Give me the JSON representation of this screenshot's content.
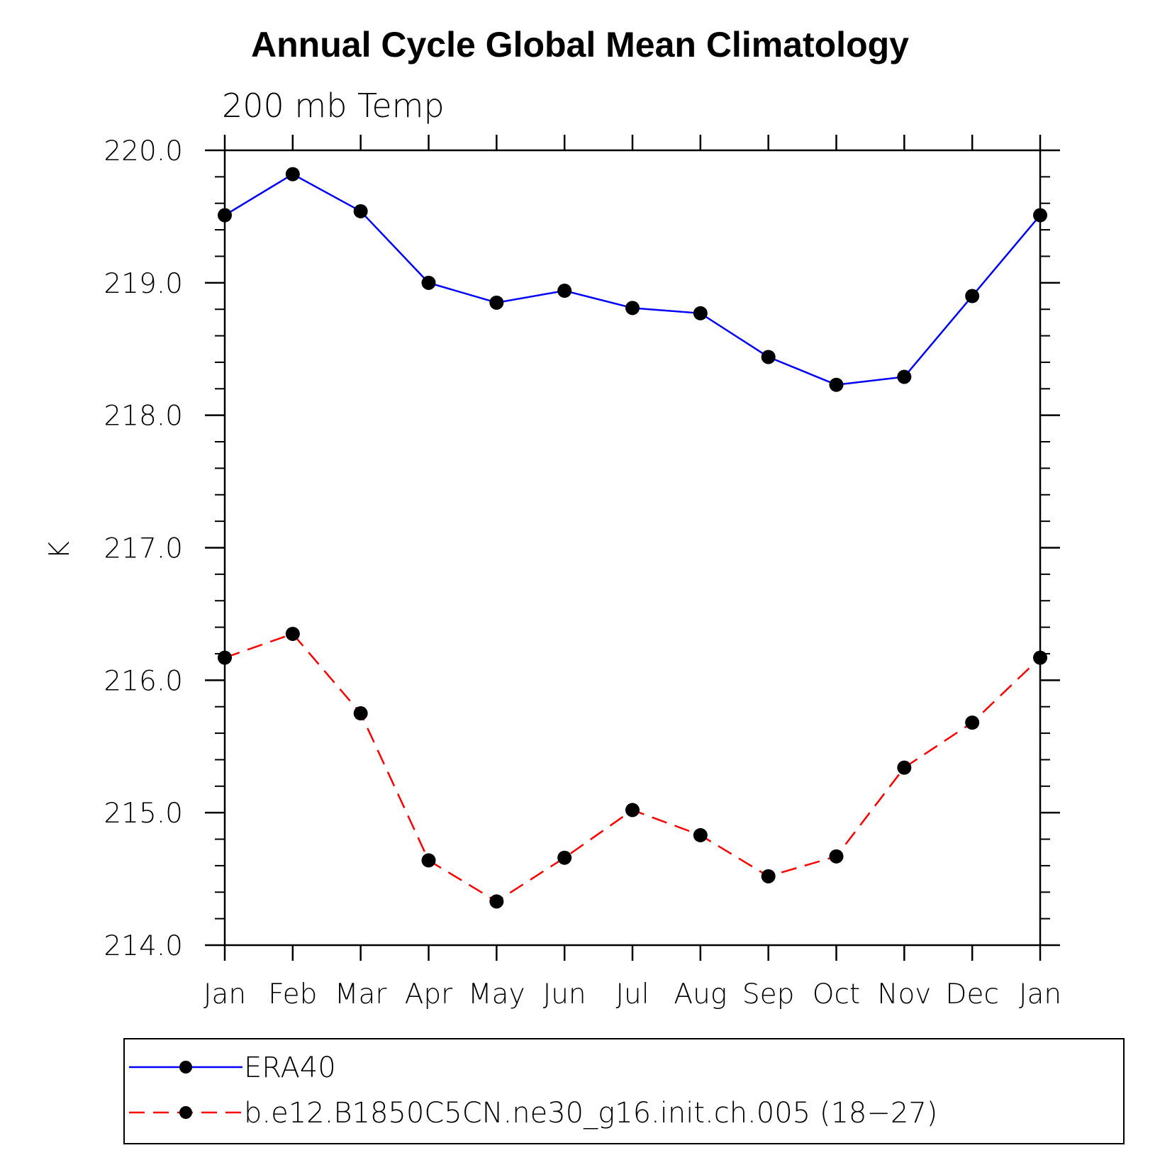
{
  "chart_data": {
    "type": "line",
    "title": "Annual Cycle Global Mean Climatology",
    "subtitle": "200 mb Temp",
    "ylabel": "K",
    "xlabel": "",
    "categories": [
      "Jan",
      "Feb",
      "Mar",
      "Apr",
      "May",
      "Jun",
      "Jul",
      "Aug",
      "Sep",
      "Oct",
      "Nov",
      "Dec",
      "Jan"
    ],
    "ylim": [
      214.0,
      220.0
    ],
    "yticks": [
      "214.0",
      "215.0",
      "216.0",
      "217.0",
      "218.0",
      "219.0",
      "220.0"
    ],
    "grid": false,
    "legend_position": "bottom",
    "series": [
      {
        "name": "ERA40",
        "color": "#0000ff",
        "dash": "solid",
        "marker": "circle",
        "values": [
          219.51,
          219.82,
          219.54,
          219.0,
          218.85,
          218.94,
          218.81,
          218.77,
          218.44,
          218.23,
          218.29,
          218.9,
          219.51
        ]
      },
      {
        "name": "b.e12.B1850C5CN.ne30_g16.init.ch.005 (18−27)",
        "color": "#ff0000",
        "dash": "dashed",
        "marker": "circle",
        "values": [
          216.17,
          216.35,
          215.75,
          214.64,
          214.33,
          214.66,
          215.02,
          214.83,
          214.52,
          214.67,
          215.34,
          215.68,
          216.17
        ]
      }
    ]
  }
}
